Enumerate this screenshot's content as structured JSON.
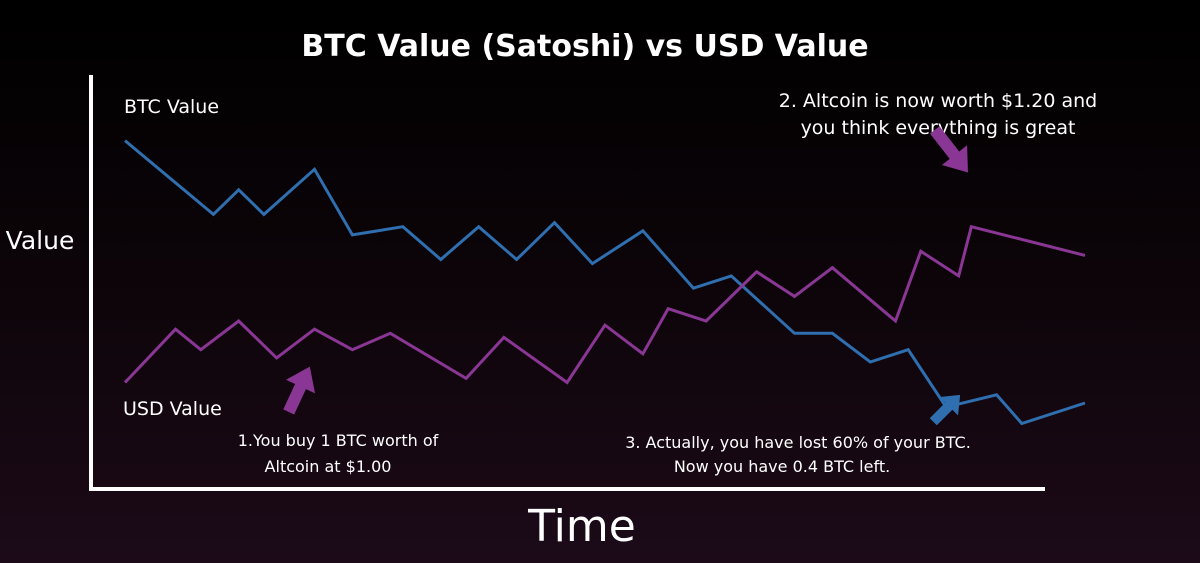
{
  "chart_data": {
    "type": "line",
    "title": "BTC Value (Satoshi) vs USD Value",
    "xlabel": "Time",
    "ylabel": "Value",
    "grid": false,
    "legend": "none (series labelled directly on chart)",
    "series": [
      {
        "name": "BTC Value",
        "color": "#2f6fb0",
        "values": [
          [
            0,
            84
          ],
          [
            3.5,
            66
          ],
          [
            4.5,
            72
          ],
          [
            5.5,
            66
          ],
          [
            7.5,
            77
          ],
          [
            9,
            61
          ],
          [
            11,
            63
          ],
          [
            12.5,
            55
          ],
          [
            14,
            63
          ],
          [
            15.5,
            55
          ],
          [
            17,
            64
          ],
          [
            18.5,
            54
          ],
          [
            20.5,
            62
          ],
          [
            22.5,
            48
          ],
          [
            24,
            51
          ],
          [
            26.5,
            37
          ],
          [
            28,
            37
          ],
          [
            29.5,
            30
          ],
          [
            31,
            33
          ],
          [
            32.5,
            19
          ],
          [
            34.5,
            22
          ],
          [
            35.5,
            15
          ],
          [
            38,
            20
          ]
        ]
      },
      {
        "name": "USD Value",
        "color": "#8a3694",
        "values": [
          [
            0,
            25
          ],
          [
            2,
            38
          ],
          [
            3,
            33
          ],
          [
            4.5,
            40
          ],
          [
            6,
            31
          ],
          [
            7.5,
            38
          ],
          [
            9,
            33
          ],
          [
            10.5,
            37
          ],
          [
            13.5,
            26
          ],
          [
            15,
            36
          ],
          [
            17.5,
            25
          ],
          [
            19,
            39
          ],
          [
            20.5,
            32
          ],
          [
            21.5,
            43
          ],
          [
            23,
            40
          ],
          [
            25,
            52
          ],
          [
            26.5,
            46
          ],
          [
            28,
            53
          ],
          [
            30.5,
            40
          ],
          [
            31.5,
            57
          ],
          [
            33,
            51
          ],
          [
            33.5,
            63
          ],
          [
            38,
            56
          ]
        ]
      }
    ],
    "annotations": [
      {
        "lines": [
          "2. Altcoin is now worth $1.20 and",
          "you think everything is great"
        ],
        "arrow_color": "#8a3694",
        "points_to": "USD Value peak"
      },
      {
        "lines": [
          "1.You buy 1 BTC worth of",
          "Altcoin at $1.00"
        ],
        "arrow_color": "#8a3694",
        "points_to": "USD Value start"
      },
      {
        "lines": [
          "3. Actually, you have lost 60% of your BTC.",
          "Now you have 0.4 BTC left."
        ],
        "arrow_color": "#2f6fb0",
        "points_to": "BTC Value end"
      }
    ],
    "xlim": [
      0,
      38
    ],
    "ylim": [
      0,
      100
    ]
  }
}
